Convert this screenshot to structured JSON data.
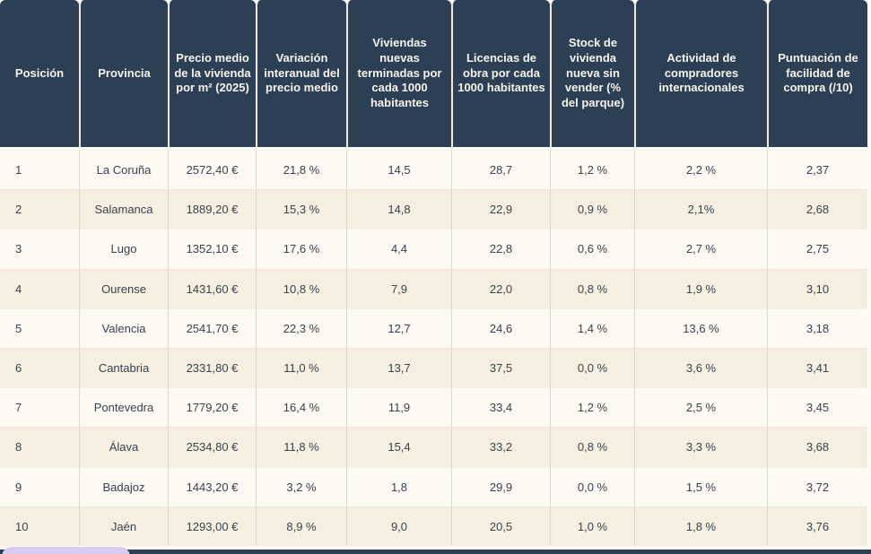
{
  "table": {
    "columns": [
      "Posición",
      "Provincia",
      "Precio medio de la vivienda por m² (2025)",
      "Variación interanual del precio medio",
      "Viviendas nuevas terminadas por cada 1000 habitantes",
      "Licencias de obra por cada 1000 habitantes",
      "Stock de vivienda nueva sin vender (% del parque)",
      "Actividad de compradores internacionales",
      "Puntuación de facilidad de compra (/10)"
    ],
    "rows": [
      {
        "cells": [
          "1",
          "La Coruña",
          "2572,40 €",
          "21,8 %",
          "14,5",
          "28,7",
          "1,2 %",
          "2,2 %",
          "2,37"
        ]
      },
      {
        "cells": [
          "2",
          "Salamanca",
          "1889,20 €",
          "15,3 %",
          "14,8",
          "22,9",
          "0,9 %",
          "2,1%",
          "2,68"
        ]
      },
      {
        "cells": [
          "3",
          "Lugo",
          "1352,10 €",
          "17,6 %",
          "4,4",
          "22,8",
          "0,6 %",
          "2,7 %",
          "2,75"
        ]
      },
      {
        "cells": [
          "4",
          "Ourense",
          "1431,60 €",
          "10,8 %",
          "7,9",
          "22,0",
          "0,8 %",
          "1,9 %",
          "3,10"
        ]
      },
      {
        "cells": [
          "5",
          "Valencia",
          "2541,70 €",
          "22,3 %",
          "12,7",
          "24,6",
          "1,4 %",
          "13,6 %",
          "3,18"
        ]
      },
      {
        "cells": [
          "6",
          "Cantabria",
          "2331,80 €",
          "11,0 %",
          "13,7",
          "37,5",
          "0,0 %",
          "3,6 %",
          "3,41"
        ]
      },
      {
        "cells": [
          "7",
          "Pontevedra",
          "1779,20 €",
          "16,4 %",
          "11,9",
          "33,4",
          "1,2 %",
          "2,5 %",
          "3,45"
        ]
      },
      {
        "cells": [
          "8",
          "Álava",
          "2534,80 €",
          "11,8 %",
          "15,4",
          "33,2",
          "0,8 %",
          "3,3 %",
          "3,68"
        ]
      },
      {
        "cells": [
          "9",
          "Badajoz",
          "1443,20 €",
          "3,2 %",
          "1,8",
          "29,9",
          "0,0 %",
          "1,5 %",
          "3,72"
        ]
      },
      {
        "cells": [
          "10",
          "Jaén",
          "1293,00 €",
          "8,9 %",
          "9,0",
          "20,5",
          "1,0 %",
          "1,8 %",
          "3,76"
        ]
      }
    ]
  },
  "colors": {
    "header_bg": "#2d3f55",
    "header_text": "#f6f3ec",
    "row_odd_bg": "#fcfaf2",
    "row_even_bg": "#f6efe1",
    "page_bg": "#fdfcf7",
    "body_text": "#39424d",
    "separator": "#dcd8cf",
    "bottom_bar": "#2d3f55",
    "pill_accent": "#d8cbf0"
  }
}
